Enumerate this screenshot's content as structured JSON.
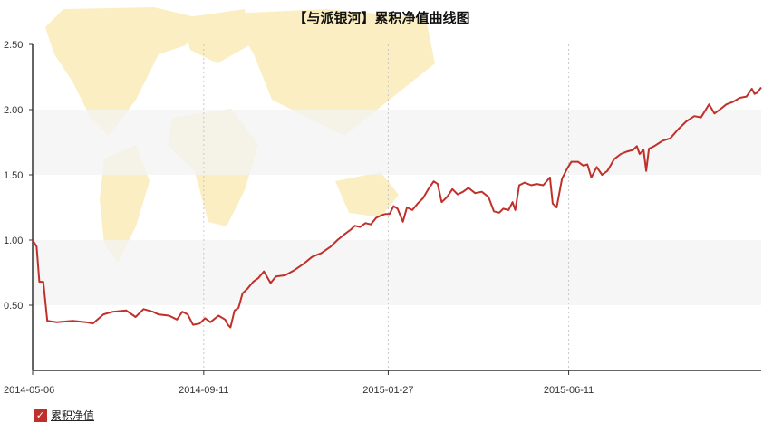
{
  "chart_data": {
    "type": "line",
    "title": "【与派银河】累积净值曲线图",
    "xlabel": "",
    "ylabel": "",
    "ylim": [
      0,
      2.5
    ],
    "y_ticks": [
      "0.50",
      "1.00",
      "1.50",
      "2.00",
      "2.50"
    ],
    "x_ticks": [
      "2014-05-06",
      "2014-09-11",
      "2015-01-27",
      "2015-06-11"
    ],
    "grid": "vertical dashed lines at x ticks; alternating light-grey horizontal bands",
    "background": "world map watermark",
    "legend_position": "bottom-left",
    "series": [
      {
        "name": "累积净值",
        "color": "#c0302a",
        "points": [
          [
            "2014-05-06",
            1.0
          ],
          [
            "2014-05-09",
            0.95
          ],
          [
            "2014-05-11",
            0.68
          ],
          [
            "2014-05-14",
            0.68
          ],
          [
            "2014-05-17",
            0.38
          ],
          [
            "2014-05-24",
            0.37
          ],
          [
            "2014-06-05",
            0.38
          ],
          [
            "2014-06-15",
            0.37
          ],
          [
            "2014-06-20",
            0.36
          ],
          [
            "2014-06-28",
            0.43
          ],
          [
            "2014-07-05",
            0.45
          ],
          [
            "2014-07-15",
            0.46
          ],
          [
            "2014-07-22",
            0.41
          ],
          [
            "2014-07-28",
            0.47
          ],
          [
            "2014-08-04",
            0.45
          ],
          [
            "2014-08-08",
            0.43
          ],
          [
            "2014-08-16",
            0.42
          ],
          [
            "2014-08-22",
            0.39
          ],
          [
            "2014-08-26",
            0.45
          ],
          [
            "2014-08-30",
            0.43
          ],
          [
            "2014-09-03",
            0.35
          ],
          [
            "2014-09-08",
            0.36
          ],
          [
            "2014-09-12",
            0.4
          ],
          [
            "2014-09-16",
            0.37
          ],
          [
            "2014-09-22",
            0.42
          ],
          [
            "2014-09-27",
            0.39
          ],
          [
            "2014-09-29",
            0.35
          ],
          [
            "2014-10-01",
            0.33
          ],
          [
            "2014-10-04",
            0.46
          ],
          [
            "2014-10-07",
            0.48
          ],
          [
            "2014-10-10",
            0.59
          ],
          [
            "2014-10-14",
            0.63
          ],
          [
            "2014-10-18",
            0.68
          ],
          [
            "2014-10-22",
            0.71
          ],
          [
            "2014-10-26",
            0.76
          ],
          [
            "2014-10-31",
            0.67
          ],
          [
            "2014-11-04",
            0.72
          ],
          [
            "2014-11-11",
            0.73
          ],
          [
            "2014-11-18",
            0.77
          ],
          [
            "2014-11-25",
            0.82
          ],
          [
            "2014-12-01",
            0.87
          ],
          [
            "2014-12-08",
            0.9
          ],
          [
            "2014-12-15",
            0.95
          ],
          [
            "2014-12-20",
            1.0
          ],
          [
            "2014-12-26",
            1.05
          ],
          [
            "2014-12-30",
            1.08
          ],
          [
            "2015-01-02",
            1.11
          ],
          [
            "2015-01-06",
            1.1
          ],
          [
            "2015-01-10",
            1.13
          ],
          [
            "2015-01-14",
            1.12
          ],
          [
            "2015-01-18",
            1.17
          ],
          [
            "2015-01-22",
            1.19
          ],
          [
            "2015-01-25",
            1.2
          ],
          [
            "2015-01-28",
            1.2
          ],
          [
            "2015-01-31",
            1.26
          ],
          [
            "2015-02-03",
            1.24
          ],
          [
            "2015-02-07",
            1.14
          ],
          [
            "2015-02-10",
            1.25
          ],
          [
            "2015-02-14",
            1.23
          ],
          [
            "2015-02-18",
            1.28
          ],
          [
            "2015-02-22",
            1.32
          ],
          [
            "2015-02-26",
            1.39
          ],
          [
            "2015-03-02",
            1.45
          ],
          [
            "2015-03-05",
            1.43
          ],
          [
            "2015-03-08",
            1.29
          ],
          [
            "2015-03-12",
            1.33
          ],
          [
            "2015-03-16",
            1.39
          ],
          [
            "2015-03-20",
            1.35
          ],
          [
            "2015-03-24",
            1.37
          ],
          [
            "2015-03-28",
            1.4
          ],
          [
            "2015-04-02",
            1.36
          ],
          [
            "2015-04-07",
            1.37
          ],
          [
            "2015-04-12",
            1.33
          ],
          [
            "2015-04-16",
            1.22
          ],
          [
            "2015-04-20",
            1.21
          ],
          [
            "2015-04-23",
            1.24
          ],
          [
            "2015-04-27",
            1.23
          ],
          [
            "2015-04-30",
            1.29
          ],
          [
            "2015-05-02",
            1.23
          ],
          [
            "2015-05-05",
            1.42
          ],
          [
            "2015-05-09",
            1.44
          ],
          [
            "2015-05-14",
            1.42
          ],
          [
            "2015-05-18",
            1.43
          ],
          [
            "2015-05-23",
            1.42
          ],
          [
            "2015-05-28",
            1.48
          ],
          [
            "2015-05-30",
            1.28
          ],
          [
            "2015-06-02",
            1.25
          ],
          [
            "2015-06-06",
            1.47
          ],
          [
            "2015-06-10",
            1.55
          ],
          [
            "2015-06-13",
            1.6
          ],
          [
            "2015-06-18",
            1.6
          ],
          [
            "2015-06-22",
            1.57
          ],
          [
            "2015-06-25",
            1.58
          ],
          [
            "2015-06-28",
            1.48
          ],
          [
            "2015-07-02",
            1.56
          ],
          [
            "2015-07-06",
            1.5
          ],
          [
            "2015-07-10",
            1.53
          ],
          [
            "2015-07-15",
            1.62
          ],
          [
            "2015-07-20",
            1.66
          ],
          [
            "2015-07-25",
            1.68
          ],
          [
            "2015-07-29",
            1.69
          ],
          [
            "2015-08-01",
            1.72
          ],
          [
            "2015-08-03",
            1.66
          ],
          [
            "2015-08-06",
            1.69
          ],
          [
            "2015-08-08",
            1.53
          ],
          [
            "2015-08-10",
            1.7
          ],
          [
            "2015-08-14",
            1.72
          ],
          [
            "2015-08-20",
            1.76
          ],
          [
            "2015-08-26",
            1.78
          ],
          [
            "2015-09-01",
            1.85
          ],
          [
            "2015-09-07",
            1.91
          ],
          [
            "2015-09-13",
            1.95
          ],
          [
            "2015-09-18",
            1.94
          ],
          [
            "2015-09-24",
            2.04
          ],
          [
            "2015-09-28",
            1.97
          ],
          [
            "2015-10-02",
            2.0
          ],
          [
            "2015-10-07",
            2.04
          ],
          [
            "2015-10-12",
            2.06
          ],
          [
            "2015-10-17",
            2.09
          ],
          [
            "2015-10-22",
            2.1
          ],
          [
            "2015-10-26",
            2.16
          ],
          [
            "2015-10-28",
            2.12
          ],
          [
            "2015-10-30",
            2.13
          ],
          [
            "2015-11-02",
            2.17
          ]
        ]
      }
    ]
  }
}
